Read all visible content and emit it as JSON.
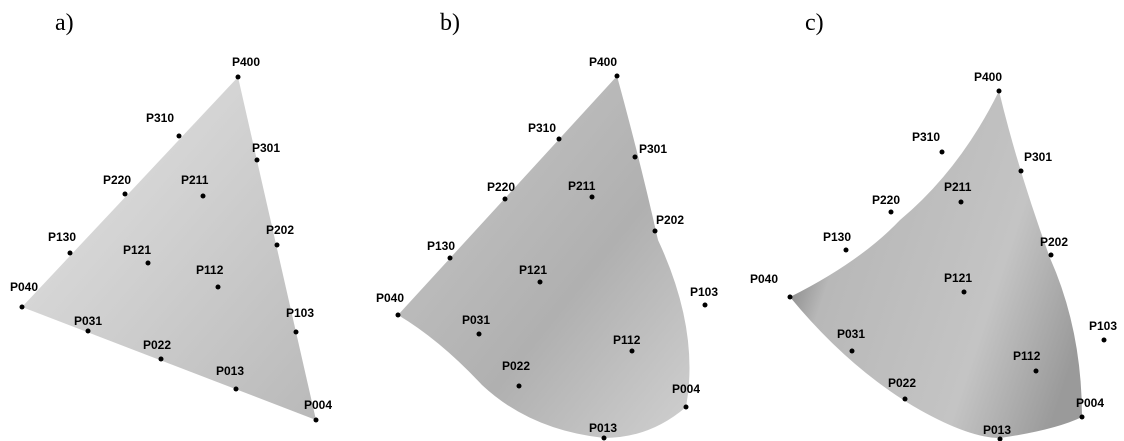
{
  "panels": [
    {
      "label": "a)",
      "points": [
        "P400",
        "P310",
        "P301",
        "P220",
        "P211",
        "P130",
        "P121",
        "P202",
        "P040",
        "P112",
        "P031",
        "P103",
        "P022",
        "P013",
        "P004"
      ]
    },
    {
      "label": "b)",
      "points": [
        "P400",
        "P310",
        "P301",
        "P220",
        "P211",
        "P202",
        "P130",
        "P121",
        "P103",
        "P040",
        "P031",
        "P112",
        "P022",
        "P004",
        "P013"
      ]
    },
    {
      "label": "c)",
      "points": [
        "P400",
        "P310",
        "P301",
        "P220",
        "P211",
        "P130",
        "P202",
        "P040",
        "P121",
        "P031",
        "P103",
        "P112",
        "P022",
        "P004",
        "P013"
      ]
    }
  ]
}
